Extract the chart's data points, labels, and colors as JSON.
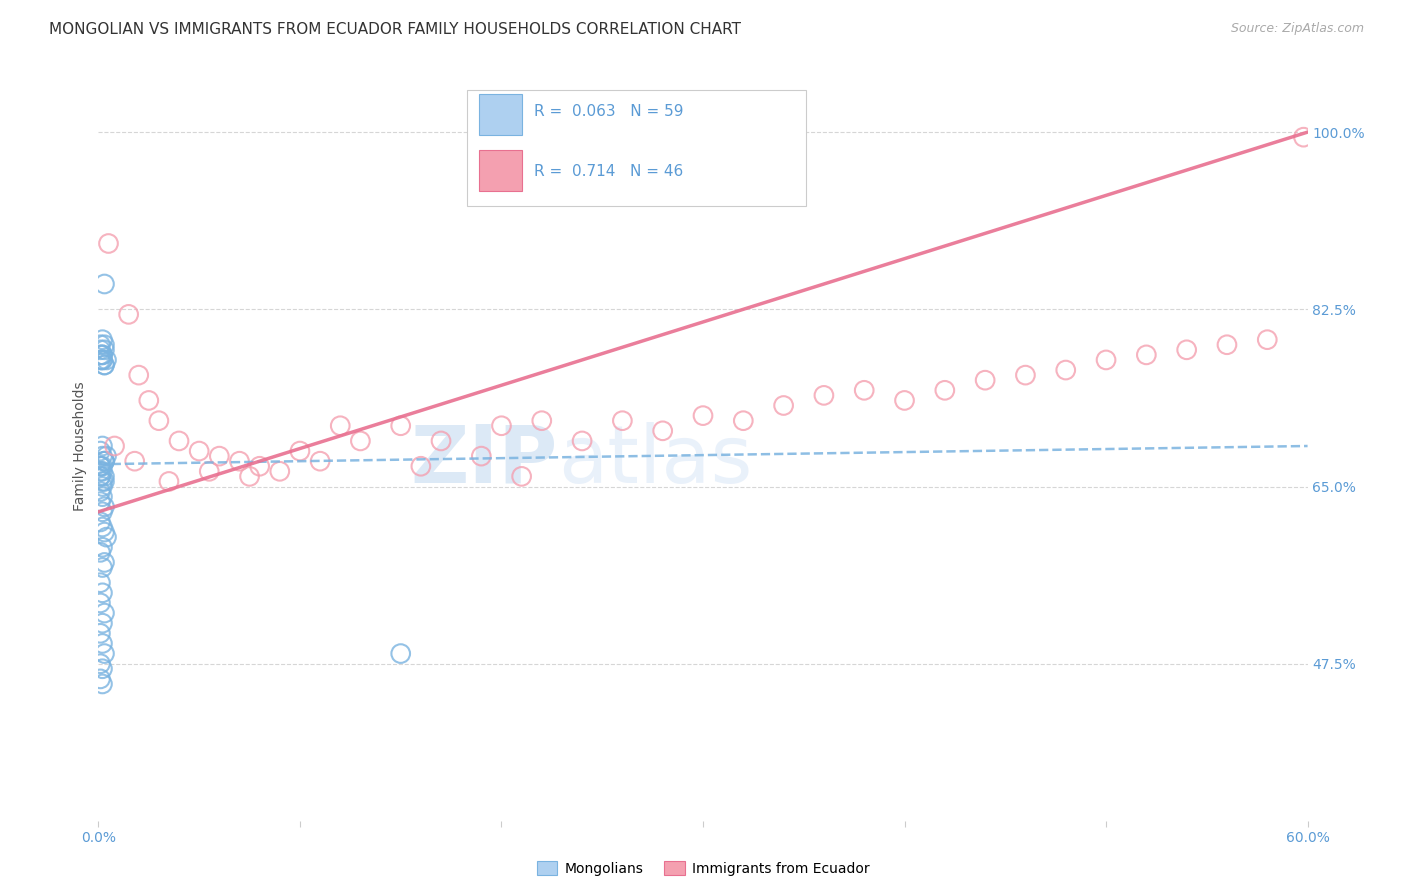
{
  "title": "MONGOLIAN VS IMMIGRANTS FROM ECUADOR FAMILY HOUSEHOLDS CORRELATION CHART",
  "source": "Source: ZipAtlas.com",
  "ylabel": "Family Households",
  "ytick_labels": [
    "47.5%",
    "65.0%",
    "82.5%",
    "100.0%"
  ],
  "ytick_values": [
    0.475,
    0.65,
    0.825,
    1.0
  ],
  "xlim": [
    0.0,
    0.6
  ],
  "ylim": [
    0.32,
    1.06
  ],
  "mongolian_color": "#7ab3e0",
  "ecuador_color": "#f4a0b0",
  "trendline_mongolian_color": "#7ab3e0",
  "trendline_ecuador_color": "#e87090",
  "legend_R_mongolian": "0.063",
  "legend_N_mongolian": "59",
  "legend_R_ecuador": "0.714",
  "legend_N_ecuador": "46",
  "watermark_zip": "ZIP",
  "watermark_atlas": "atlas",
  "background_color": "#ffffff",
  "grid_color": "#cccccc",
  "right_axis_color": "#5b9bd5",
  "title_fontsize": 11,
  "axis_label_fontsize": 10,
  "tick_fontsize": 10,
  "legend_fontsize": 11
}
